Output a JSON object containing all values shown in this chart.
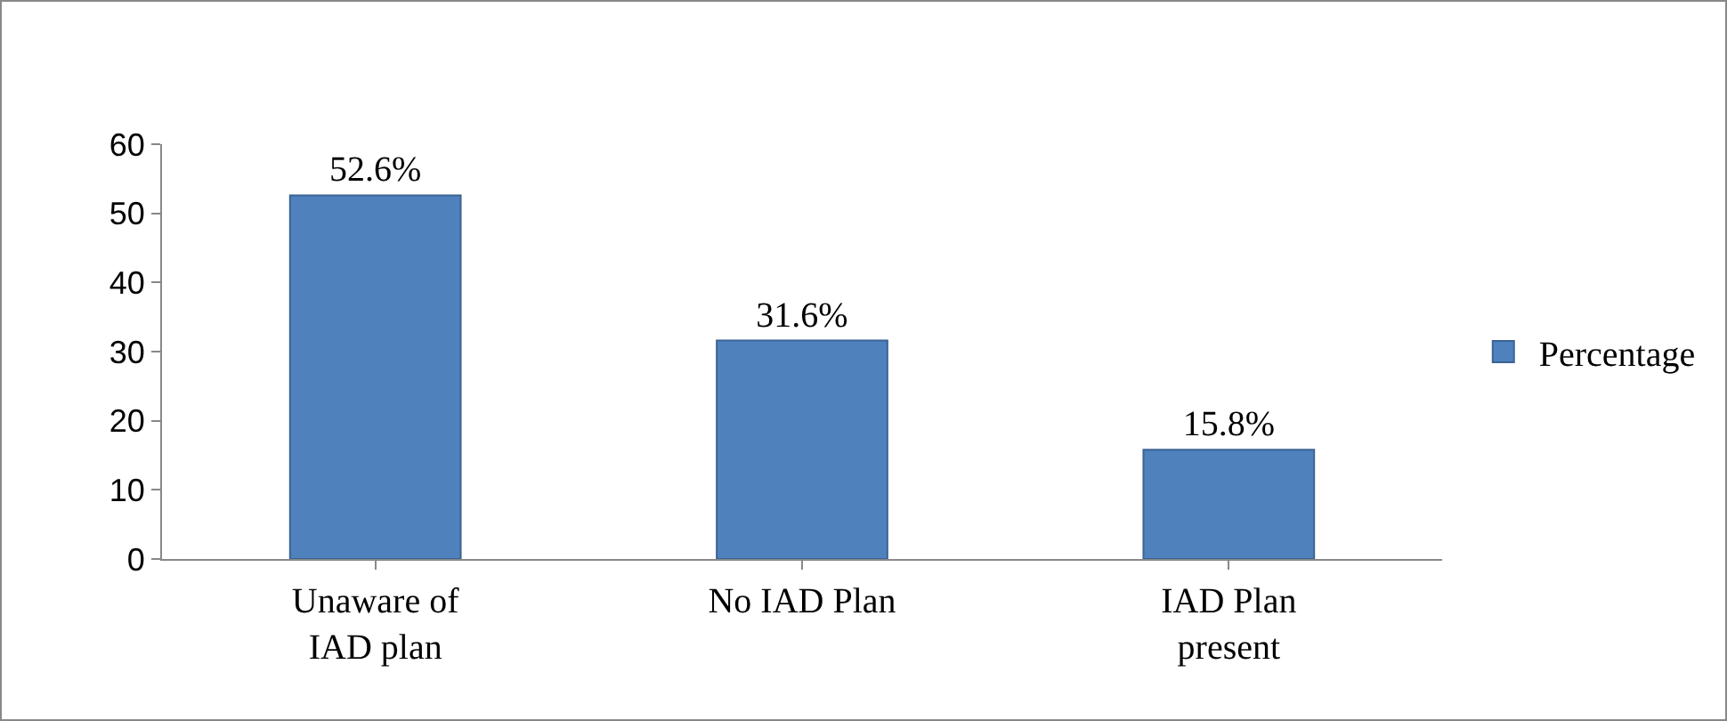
{
  "chart_data": {
    "type": "bar",
    "categories": [
      "Unaware of IAD plan",
      "No IAD Plan",
      "IAD Plan present"
    ],
    "series": [
      {
        "name": "Percentage",
        "color": "#4f81bd",
        "values": [
          52.6,
          31.6,
          15.8
        ],
        "value_labels": [
          "52.6%",
          "31.6%",
          "15.8%"
        ]
      }
    ],
    "ylim": [
      0,
      60
    ],
    "yticks": [
      0,
      10,
      20,
      30,
      40,
      50,
      60
    ],
    "grid": false,
    "legend": "right"
  }
}
